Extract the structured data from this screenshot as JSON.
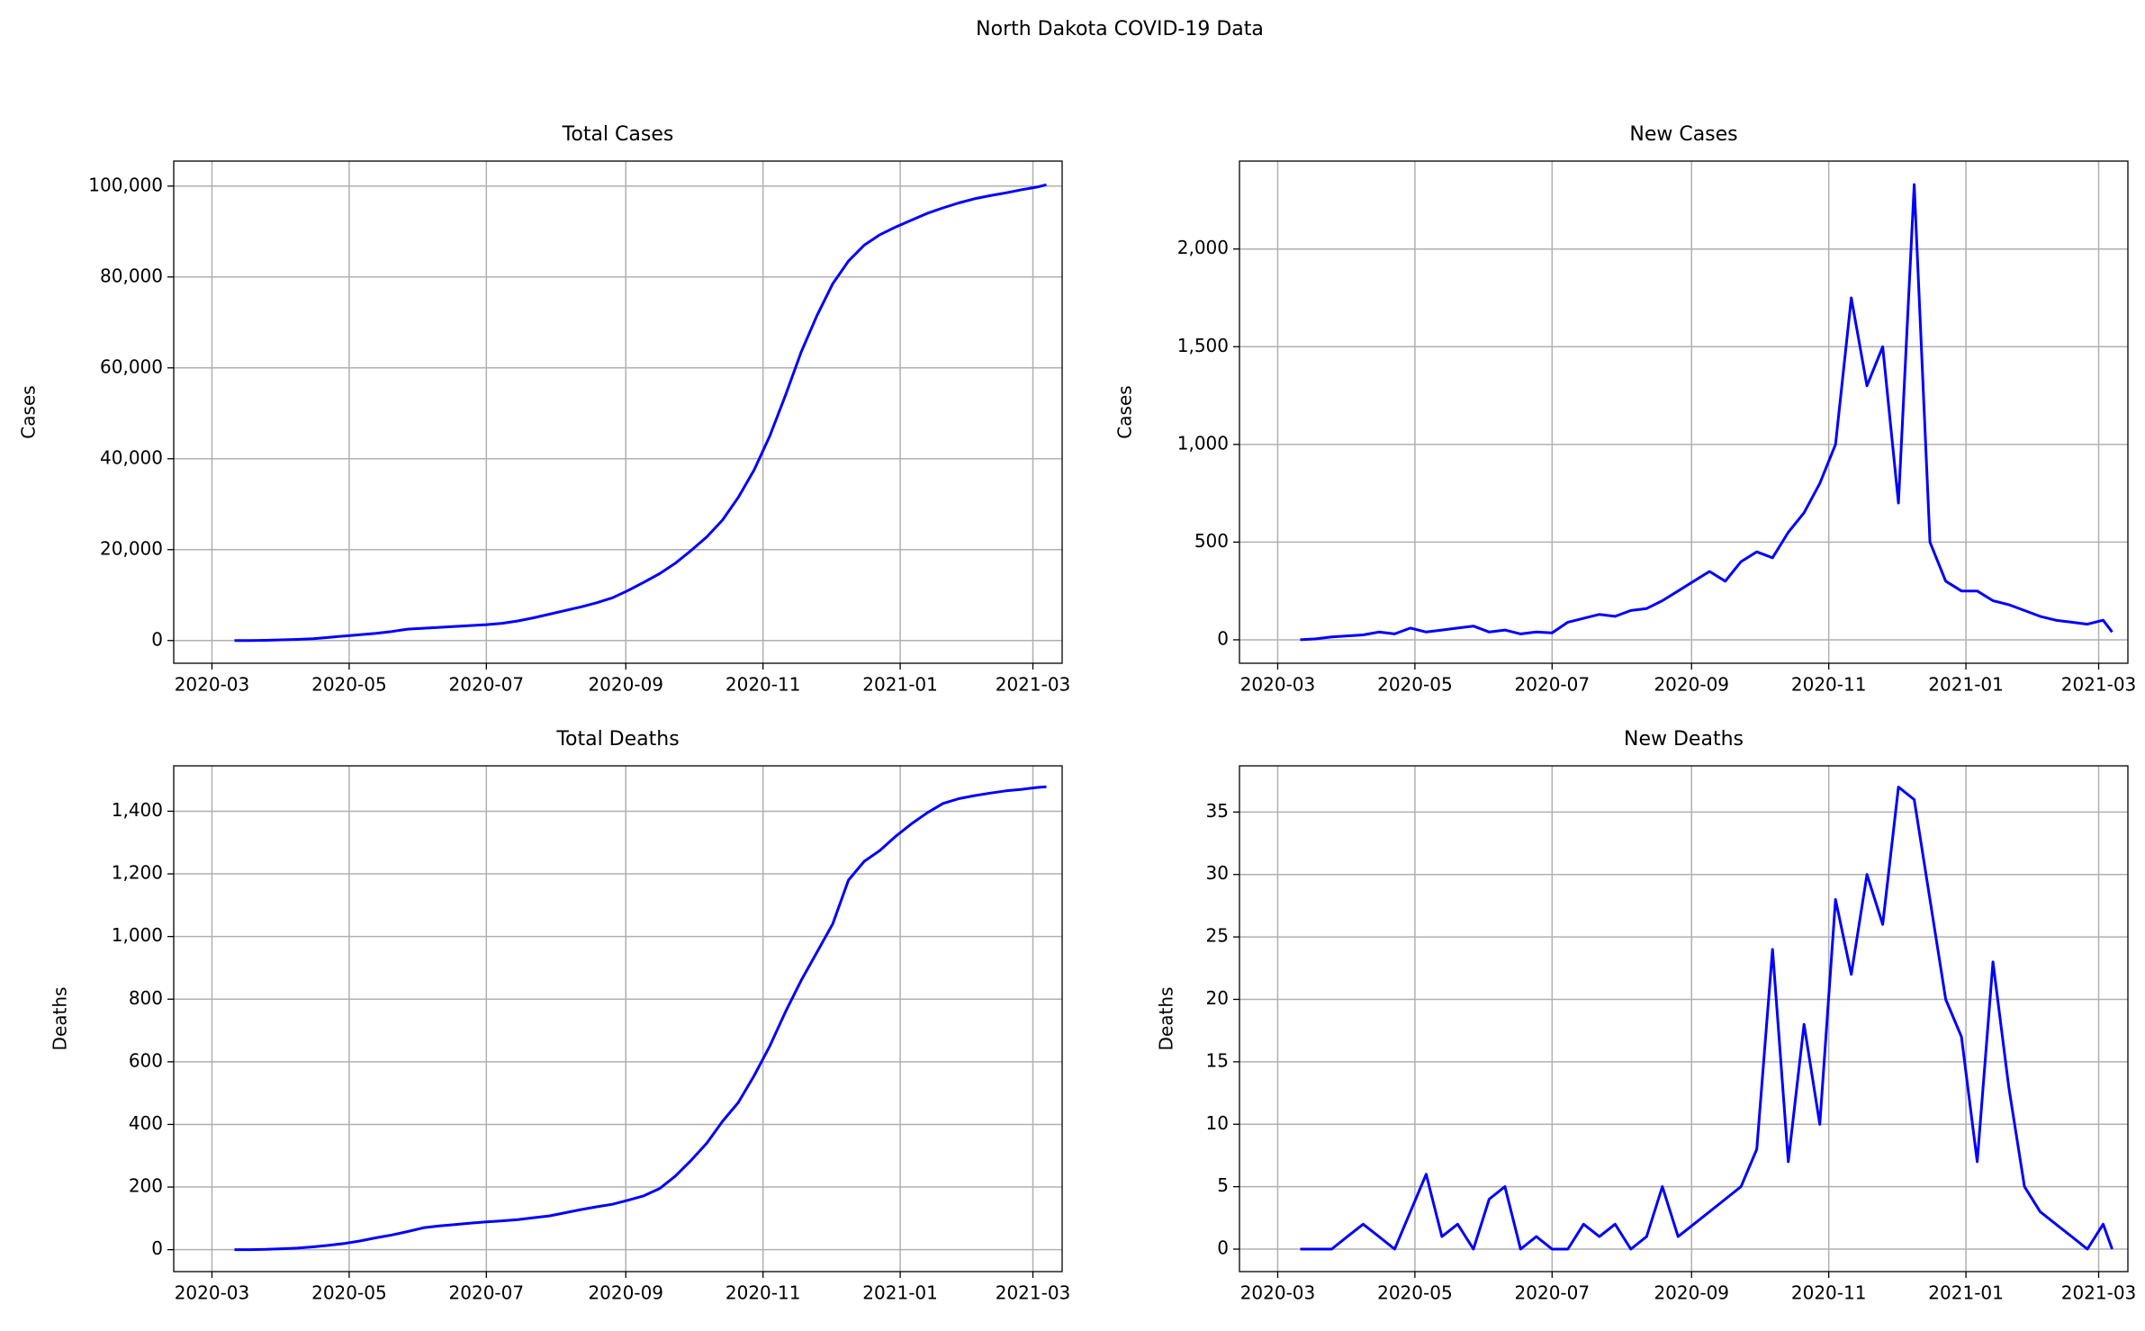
{
  "title": "North Dakota COVID-19 Data",
  "chart_data": [
    {
      "type": "line",
      "title": "Total Cases",
      "ylabel": "Cases",
      "color": "#0000ff",
      "grid": true,
      "x": [
        "2020-03-11",
        "2020-03-18",
        "2020-03-25",
        "2020-04-01",
        "2020-04-08",
        "2020-04-15",
        "2020-04-22",
        "2020-04-29",
        "2020-05-06",
        "2020-05-13",
        "2020-05-20",
        "2020-05-27",
        "2020-06-03",
        "2020-06-10",
        "2020-06-17",
        "2020-06-24",
        "2020-07-01",
        "2020-07-08",
        "2020-07-15",
        "2020-07-22",
        "2020-07-29",
        "2020-08-05",
        "2020-08-12",
        "2020-08-19",
        "2020-08-26",
        "2020-09-02",
        "2020-09-09",
        "2020-09-16",
        "2020-09-23",
        "2020-09-30",
        "2020-10-07",
        "2020-10-14",
        "2020-10-21",
        "2020-10-28",
        "2020-11-04",
        "2020-11-11",
        "2020-11-18",
        "2020-11-25",
        "2020-12-02",
        "2020-12-09",
        "2020-12-16",
        "2020-12-23",
        "2020-12-30",
        "2021-01-06",
        "2021-01-13",
        "2021-01-20",
        "2021-01-27",
        "2021-02-03",
        "2021-02-10",
        "2021-02-17",
        "2021-02-24",
        "2021-03-03",
        "2021-03-07"
      ],
      "values": [
        0,
        10,
        50,
        150,
        250,
        400,
        700,
        1000,
        1300,
        1600,
        2000,
        2500,
        2700,
        2900,
        3100,
        3300,
        3500,
        3800,
        4300,
        5000,
        5800,
        6600,
        7400,
        8300,
        9400,
        11000,
        12800,
        14700,
        17000,
        19800,
        22800,
        26500,
        31500,
        37500,
        45000,
        54000,
        63500,
        71500,
        78500,
        83500,
        87000,
        89300,
        91000,
        92500,
        94000,
        95200,
        96300,
        97200,
        97900,
        98500,
        99200,
        99800,
        100300
      ],
      "xlim": [
        "2020-02-13",
        "2021-03-14"
      ],
      "xticks": [
        "2020-03",
        "2020-05",
        "2020-07",
        "2020-09",
        "2020-11",
        "2021-01",
        "2021-03"
      ],
      "ylim": [
        -5000,
        105500
      ],
      "yticks": [
        0,
        {
          "value": 20000,
          "label": "20,000"
        },
        {
          "value": 40000,
          "label": "40,000"
        },
        {
          "value": 60000,
          "label": "60,000"
        },
        {
          "value": 80000,
          "label": "80,000"
        },
        {
          "value": 100000,
          "label": "100,000"
        }
      ]
    },
    {
      "type": "line",
      "title": "New Cases",
      "ylabel": "Cases",
      "color": "#0000ff",
      "grid": true,
      "x": [
        "2020-03-11",
        "2020-03-18",
        "2020-03-25",
        "2020-04-01",
        "2020-04-08",
        "2020-04-15",
        "2020-04-22",
        "2020-04-29",
        "2020-05-06",
        "2020-05-13",
        "2020-05-20",
        "2020-05-27",
        "2020-06-03",
        "2020-06-10",
        "2020-06-17",
        "2020-06-24",
        "2020-07-01",
        "2020-07-08",
        "2020-07-15",
        "2020-07-22",
        "2020-07-29",
        "2020-08-05",
        "2020-08-12",
        "2020-08-19",
        "2020-08-26",
        "2020-09-02",
        "2020-09-09",
        "2020-09-16",
        "2020-09-23",
        "2020-09-30",
        "2020-10-07",
        "2020-10-14",
        "2020-10-21",
        "2020-10-28",
        "2020-11-04",
        "2020-11-11",
        "2020-11-18",
        "2020-11-25",
        "2020-12-02",
        "2020-12-09",
        "2020-12-16",
        "2020-12-23",
        "2020-12-30",
        "2021-01-06",
        "2021-01-13",
        "2021-01-20",
        "2021-01-27",
        "2021-02-03",
        "2021-02-10",
        "2021-02-17",
        "2021-02-24",
        "2021-03-03",
        "2021-03-07"
      ],
      "values": [
        0,
        5,
        15,
        20,
        25,
        40,
        30,
        60,
        40,
        50,
        60,
        70,
        40,
        50,
        30,
        40,
        35,
        90,
        110,
        130,
        120,
        150,
        160,
        200,
        250,
        300,
        350,
        300,
        400,
        450,
        420,
        550,
        650,
        800,
        1000,
        1750,
        1300,
        1500,
        700,
        2330,
        500,
        300,
        250,
        250,
        200,
        180,
        150,
        120,
        100,
        90,
        80,
        100,
        40
      ],
      "xlim": [
        "2020-02-13",
        "2021-03-14"
      ],
      "xticks": [
        "2020-03",
        "2020-05",
        "2020-07",
        "2020-09",
        "2020-11",
        "2021-01",
        "2021-03"
      ],
      "ylim": [
        -120,
        2450
      ],
      "yticks": [
        0,
        500,
        {
          "value": 1000,
          "label": "1,000"
        },
        {
          "value": 1500,
          "label": "1,500"
        },
        {
          "value": 2000,
          "label": "2,000"
        }
      ]
    },
    {
      "type": "line",
      "title": "Total Deaths",
      "ylabel": "Deaths",
      "color": "#0000ff",
      "grid": true,
      "x": [
        "2020-03-11",
        "2020-03-18",
        "2020-03-25",
        "2020-04-01",
        "2020-04-08",
        "2020-04-15",
        "2020-04-22",
        "2020-04-29",
        "2020-05-06",
        "2020-05-13",
        "2020-05-20",
        "2020-05-27",
        "2020-06-03",
        "2020-06-10",
        "2020-06-17",
        "2020-06-24",
        "2020-07-01",
        "2020-07-08",
        "2020-07-15",
        "2020-07-22",
        "2020-07-29",
        "2020-08-05",
        "2020-08-12",
        "2020-08-19",
        "2020-08-26",
        "2020-09-02",
        "2020-09-09",
        "2020-09-16",
        "2020-09-23",
        "2020-09-30",
        "2020-10-07",
        "2020-10-14",
        "2020-10-21",
        "2020-10-28",
        "2020-11-04",
        "2020-11-11",
        "2020-11-18",
        "2020-11-25",
        "2020-12-02",
        "2020-12-09",
        "2020-12-16",
        "2020-12-23",
        "2020-12-30",
        "2021-01-06",
        "2021-01-13",
        "2021-01-20",
        "2021-01-27",
        "2021-02-03",
        "2021-02-10",
        "2021-02-17",
        "2021-02-24",
        "2021-03-03",
        "2021-03-07"
      ],
      "values": [
        0,
        0,
        1,
        3,
        5,
        9,
        14,
        20,
        28,
        38,
        47,
        58,
        70,
        76,
        80,
        85,
        89,
        92,
        96,
        102,
        108,
        118,
        128,
        137,
        145,
        158,
        172,
        195,
        235,
        285,
        340,
        410,
        470,
        555,
        650,
        760,
        860,
        950,
        1040,
        1180,
        1240,
        1275,
        1320,
        1360,
        1395,
        1425,
        1440,
        1450,
        1458,
        1465,
        1470,
        1476,
        1478
      ],
      "xlim": [
        "2020-02-13",
        "2021-03-14"
      ],
      "xticks": [
        "2020-03",
        "2020-05",
        "2020-07",
        "2020-09",
        "2020-11",
        "2021-01",
        "2021-03"
      ],
      "ylim": [
        -70,
        1545
      ],
      "yticks": [
        0,
        200,
        400,
        600,
        800,
        {
          "value": 1000,
          "label": "1,000"
        },
        {
          "value": 1200,
          "label": "1,200"
        },
        {
          "value": 1400,
          "label": "1,400"
        }
      ]
    },
    {
      "type": "line",
      "title": "New Deaths",
      "ylabel": "Deaths",
      "color": "#0000ff",
      "grid": true,
      "x": [
        "2020-03-11",
        "2020-03-18",
        "2020-03-25",
        "2020-04-01",
        "2020-04-08",
        "2020-04-15",
        "2020-04-22",
        "2020-04-29",
        "2020-05-06",
        "2020-05-13",
        "2020-05-20",
        "2020-05-27",
        "2020-06-03",
        "2020-06-10",
        "2020-06-17",
        "2020-06-24",
        "2020-07-01",
        "2020-07-08",
        "2020-07-15",
        "2020-07-22",
        "2020-07-29",
        "2020-08-05",
        "2020-08-12",
        "2020-08-19",
        "2020-08-26",
        "2020-09-02",
        "2020-09-09",
        "2020-09-16",
        "2020-09-23",
        "2020-09-30",
        "2020-10-07",
        "2020-10-14",
        "2020-10-21",
        "2020-10-28",
        "2020-11-04",
        "2020-11-11",
        "2020-11-18",
        "2020-11-25",
        "2020-12-02",
        "2020-12-09",
        "2020-12-16",
        "2020-12-23",
        "2020-12-30",
        "2021-01-06",
        "2021-01-13",
        "2021-01-20",
        "2021-01-27",
        "2021-02-03",
        "2021-02-10",
        "2021-02-17",
        "2021-02-24",
        "2021-03-03",
        "2021-03-07"
      ],
      "values": [
        0,
        0,
        0,
        1,
        2,
        1,
        0,
        3,
        6,
        1,
        2,
        0,
        4,
        5,
        0,
        1,
        0,
        0,
        2,
        1,
        2,
        0,
        1,
        5,
        1,
        2,
        3,
        4,
        5,
        8,
        24,
        7,
        18,
        10,
        28,
        22,
        30,
        26,
        37,
        36,
        28,
        20,
        17,
        7,
        23,
        13,
        5,
        3,
        2,
        1,
        0,
        2,
        0
      ],
      "xlim": [
        "2020-02-13",
        "2021-03-14"
      ],
      "xticks": [
        "2020-03",
        "2020-05",
        "2020-07",
        "2020-09",
        "2020-11",
        "2021-01",
        "2021-03"
      ],
      "ylim": [
        -1.8,
        38.7
      ],
      "yticks": [
        0,
        5,
        10,
        15,
        20,
        25,
        30,
        35
      ]
    }
  ]
}
